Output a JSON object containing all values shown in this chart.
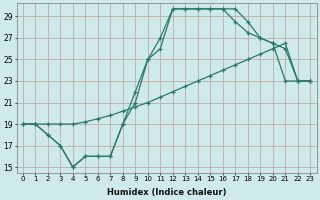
{
  "xlabel": "Humidex (Indice chaleur)",
  "background_color": "#ceeaea",
  "grid_color": "#c4aaaa",
  "line_color": "#2a7a6a",
  "xlim": [
    -0.5,
    23.5
  ],
  "ylim": [
    14.5,
    30.2
  ],
  "xticks": [
    0,
    1,
    2,
    3,
    4,
    5,
    6,
    7,
    8,
    9,
    10,
    11,
    12,
    13,
    14,
    15,
    16,
    17,
    18,
    19,
    20,
    21,
    22,
    23
  ],
  "yticks": [
    15,
    17,
    19,
    21,
    23,
    25,
    27,
    29
  ],
  "line1_x": [
    0,
    1,
    2,
    3,
    4,
    5,
    6,
    7,
    8,
    9,
    10,
    11,
    12,
    13,
    14,
    15,
    16,
    17,
    18,
    19,
    20,
    21,
    22,
    23
  ],
  "line1_y": [
    19,
    19,
    18,
    17,
    15,
    16,
    16,
    16,
    19,
    21,
    25,
    27,
    29.7,
    29.7,
    29.7,
    29.7,
    29.7,
    28.5,
    27.5,
    27,
    26.5,
    23,
    23,
    23
  ],
  "line2_x": [
    0,
    1,
    2,
    3,
    4,
    5,
    6,
    7,
    8,
    9,
    10,
    11,
    12,
    13,
    14,
    15,
    16,
    17,
    18,
    19,
    20,
    21,
    22,
    23
  ],
  "line2_y": [
    19,
    19,
    19,
    19,
    19,
    19.2,
    19.5,
    19.8,
    20.2,
    20.6,
    21,
    21.5,
    22,
    22.5,
    23,
    23.5,
    24,
    24.5,
    25,
    25.5,
    26,
    26.5,
    23,
    23
  ],
  "line3_x": [
    0,
    1,
    2,
    3,
    4,
    5,
    6,
    7,
    8,
    9,
    10,
    11,
    12,
    13,
    14,
    15,
    16,
    17,
    18,
    19,
    20,
    21,
    22,
    23
  ],
  "line3_y": [
    19,
    19,
    18,
    17,
    15,
    16,
    16,
    16,
    19,
    22,
    25,
    26,
    29.7,
    29.7,
    29.7,
    29.7,
    29.7,
    29.7,
    28.5,
    27,
    26.5,
    26,
    23,
    23
  ]
}
